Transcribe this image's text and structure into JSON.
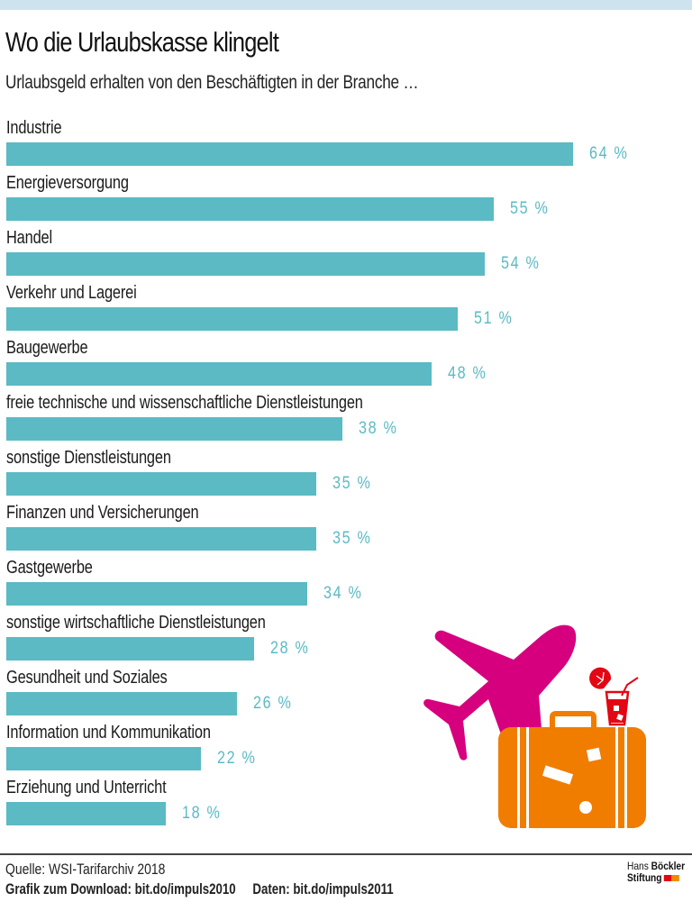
{
  "header": {
    "title": "Wo die Urlaubskasse klingelt",
    "subtitle": "Urlaubsgeld erhalten von den Beschäftigten in der Branche …"
  },
  "colors": {
    "bar": "#5bbac4",
    "value_label": "#5bbac4",
    "top_band": "#cde3ee",
    "plane": "#d6007e",
    "suitcase": "#f07d00",
    "drink": "#e30613"
  },
  "chart_data": {
    "type": "bar",
    "orientation": "horizontal",
    "title": "Wo die Urlaubskasse klingelt",
    "subtitle": "Urlaubsgeld erhalten von den Beschäftigten in der Branche …",
    "xlabel": "",
    "ylabel": "",
    "unit": "%",
    "grid": false,
    "legend": null,
    "categories": [
      "Industrie",
      "Energieversorgung",
      "Handel",
      "Verkehr und Lagerei",
      "Baugewerbe",
      "freie technische und wissenschaftliche Dienstleistungen",
      "sonstige Dienstleistungen",
      "Finanzen und Versicherungen",
      "Gastgewerbe",
      "sonstige wirtschaftliche Dienstleistungen",
      "Gesundheit und Soziales",
      "Information und Kommunikation",
      "Erziehung und Unterricht"
    ],
    "values": [
      64,
      55,
      54,
      51,
      48,
      38,
      35,
      35,
      34,
      28,
      26,
      22,
      18
    ],
    "value_labels": [
      "64 %",
      "55 %",
      "54 %",
      "51 %",
      "48 %",
      "38 %",
      "35 %",
      "35 %",
      "34 %",
      "28 %",
      "26 %",
      "22 %",
      "18 %"
    ]
  },
  "footer": {
    "source": "Quelle: WSI-Tarifarchiv 2018",
    "download": "Grafik zum Download: bit.do/impuls2010",
    "data_link": "Daten: bit.do/impuls2011",
    "logo_line1_a": "Hans",
    "logo_line1_b": "Böckler",
    "logo_line2": "Stiftung"
  }
}
